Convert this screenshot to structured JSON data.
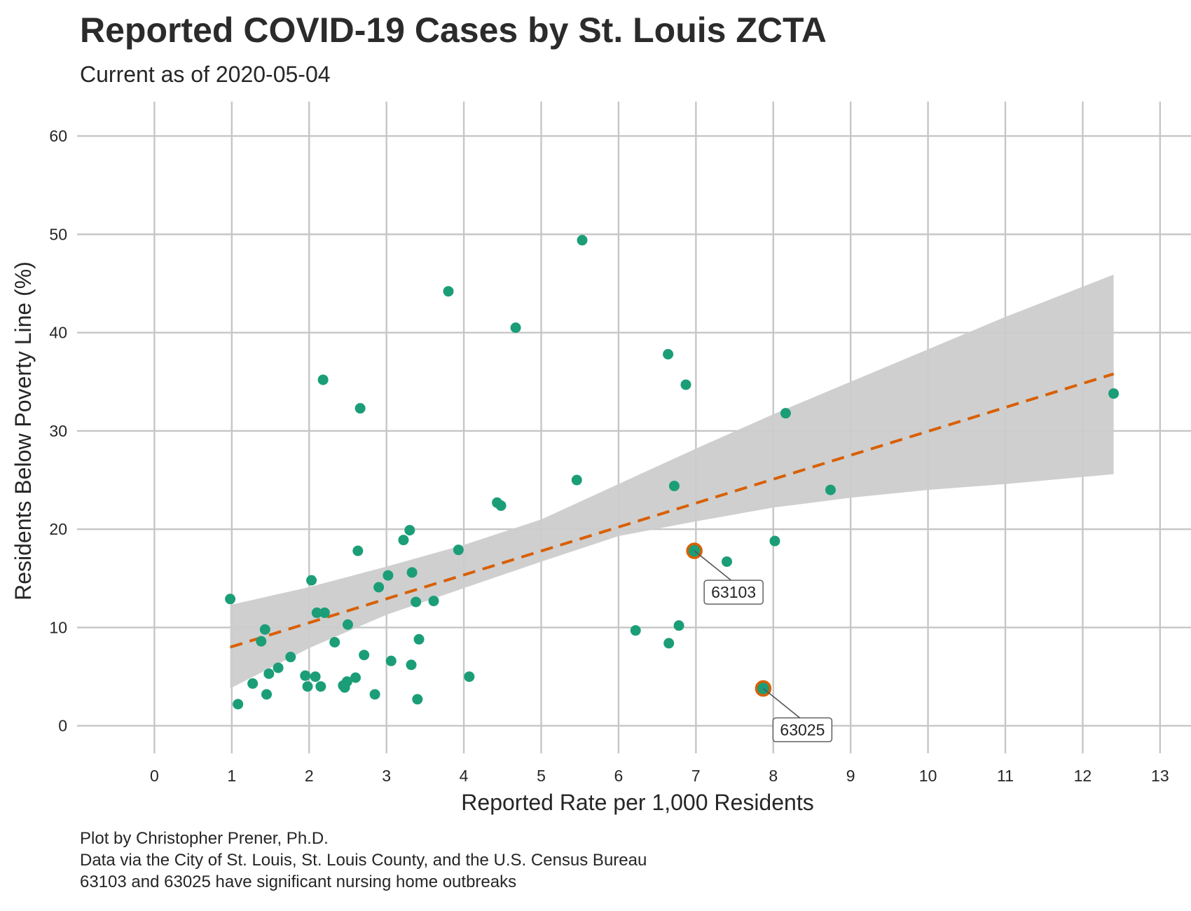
{
  "chart_data": {
    "type": "scatter",
    "title": "Reported COVID-19 Cases by St. Louis ZCTA",
    "subtitle": "Current as of 2020-05-04",
    "xlabel": "Reported Rate per 1,000 Residents",
    "ylabel": "Residents Below Poverty Line (%)",
    "xlim": [
      -1.0,
      13.4
    ],
    "ylim": [
      -2.8,
      63.5
    ],
    "x_ticks": [
      0,
      1,
      2,
      3,
      4,
      5,
      6,
      7,
      8,
      9,
      10,
      11,
      12,
      13
    ],
    "y_ticks": [
      0,
      10,
      20,
      30,
      40,
      50,
      60
    ],
    "grid": true,
    "points": [
      {
        "x": 0.98,
        "y": 12.9
      },
      {
        "x": 1.08,
        "y": 2.2
      },
      {
        "x": 1.27,
        "y": 4.3
      },
      {
        "x": 1.38,
        "y": 8.6
      },
      {
        "x": 1.43,
        "y": 9.8
      },
      {
        "x": 1.45,
        "y": 3.2
      },
      {
        "x": 1.48,
        "y": 5.3
      },
      {
        "x": 1.6,
        "y": 5.9
      },
      {
        "x": 1.76,
        "y": 7.0
      },
      {
        "x": 1.95,
        "y": 5.1
      },
      {
        "x": 1.98,
        "y": 4.0
      },
      {
        "x": 2.03,
        "y": 14.8
      },
      {
        "x": 2.08,
        "y": 5.0
      },
      {
        "x": 2.1,
        "y": 11.5
      },
      {
        "x": 2.15,
        "y": 4.0
      },
      {
        "x": 2.18,
        "y": 35.2
      },
      {
        "x": 2.2,
        "y": 11.5
      },
      {
        "x": 2.33,
        "y": 8.5
      },
      {
        "x": 2.44,
        "y": 4.1
      },
      {
        "x": 2.46,
        "y": 3.9
      },
      {
        "x": 2.49,
        "y": 4.5
      },
      {
        "x": 2.5,
        "y": 10.3
      },
      {
        "x": 2.6,
        "y": 4.9
      },
      {
        "x": 2.63,
        "y": 17.8
      },
      {
        "x": 2.66,
        "y": 32.3
      },
      {
        "x": 2.71,
        "y": 7.2
      },
      {
        "x": 2.85,
        "y": 3.2
      },
      {
        "x": 2.9,
        "y": 14.1
      },
      {
        "x": 3.02,
        "y": 15.3
      },
      {
        "x": 3.06,
        "y": 6.6
      },
      {
        "x": 3.22,
        "y": 18.9
      },
      {
        "x": 3.3,
        "y": 19.9
      },
      {
        "x": 3.32,
        "y": 6.2
      },
      {
        "x": 3.33,
        "y": 15.6
      },
      {
        "x": 3.38,
        "y": 12.6
      },
      {
        "x": 3.4,
        "y": 2.7
      },
      {
        "x": 3.42,
        "y": 8.8
      },
      {
        "x": 3.61,
        "y": 12.7
      },
      {
        "x": 3.8,
        "y": 44.2
      },
      {
        "x": 3.93,
        "y": 17.9
      },
      {
        "x": 4.07,
        "y": 5.0
      },
      {
        "x": 4.43,
        "y": 22.7
      },
      {
        "x": 4.48,
        "y": 22.4
      },
      {
        "x": 4.67,
        "y": 40.5
      },
      {
        "x": 5.46,
        "y": 25.0
      },
      {
        "x": 5.53,
        "y": 49.4
      },
      {
        "x": 6.22,
        "y": 9.7
      },
      {
        "x": 6.64,
        "y": 37.8
      },
      {
        "x": 6.65,
        "y": 8.4
      },
      {
        "x": 6.72,
        "y": 24.4
      },
      {
        "x": 6.78,
        "y": 10.2
      },
      {
        "x": 6.87,
        "y": 34.7
      },
      {
        "x": 7.4,
        "y": 16.7
      },
      {
        "x": 8.02,
        "y": 18.8
      },
      {
        "x": 8.16,
        "y": 31.8
      },
      {
        "x": 8.74,
        "y": 24.0
      },
      {
        "x": 12.4,
        "y": 33.8
      }
    ],
    "highlighted": [
      {
        "label": "63103",
        "x": 6.98,
        "y": 17.8
      },
      {
        "label": "63025",
        "x": 7.87,
        "y": 3.8
      }
    ],
    "trend_line": {
      "x": [
        0.98,
        12.4
      ],
      "y": [
        8.0,
        35.8
      ]
    },
    "confidence_band": {
      "x": [
        0.98,
        2.0,
        3.0,
        4.0,
        5.0,
        6.0,
        7.0,
        8.0,
        9.0,
        10.0,
        11.0,
        12.4
      ],
      "upper": [
        12.3,
        14.1,
        16.2,
        18.4,
        21.0,
        24.6,
        28.2,
        31.7,
        35.0,
        38.3,
        41.6,
        45.9
      ],
      "lower": [
        3.8,
        7.9,
        11.3,
        14.0,
        16.7,
        19.3,
        20.8,
        22.2,
        23.2,
        24.0,
        24.6,
        25.6
      ]
    },
    "colors": {
      "point": "#1b9e77",
      "highlight_outline": "#d95f02",
      "trend_line": "#d95f02",
      "band": "#cccccc",
      "grid": "#c6c6c6"
    }
  },
  "captions": [
    "Plot by Christopher Prener, Ph.D.",
    "Data via the City of St. Louis, St. Louis County, and the U.S. Census Bureau",
    "63103 and 63025 have significant nursing home outbreaks"
  ]
}
